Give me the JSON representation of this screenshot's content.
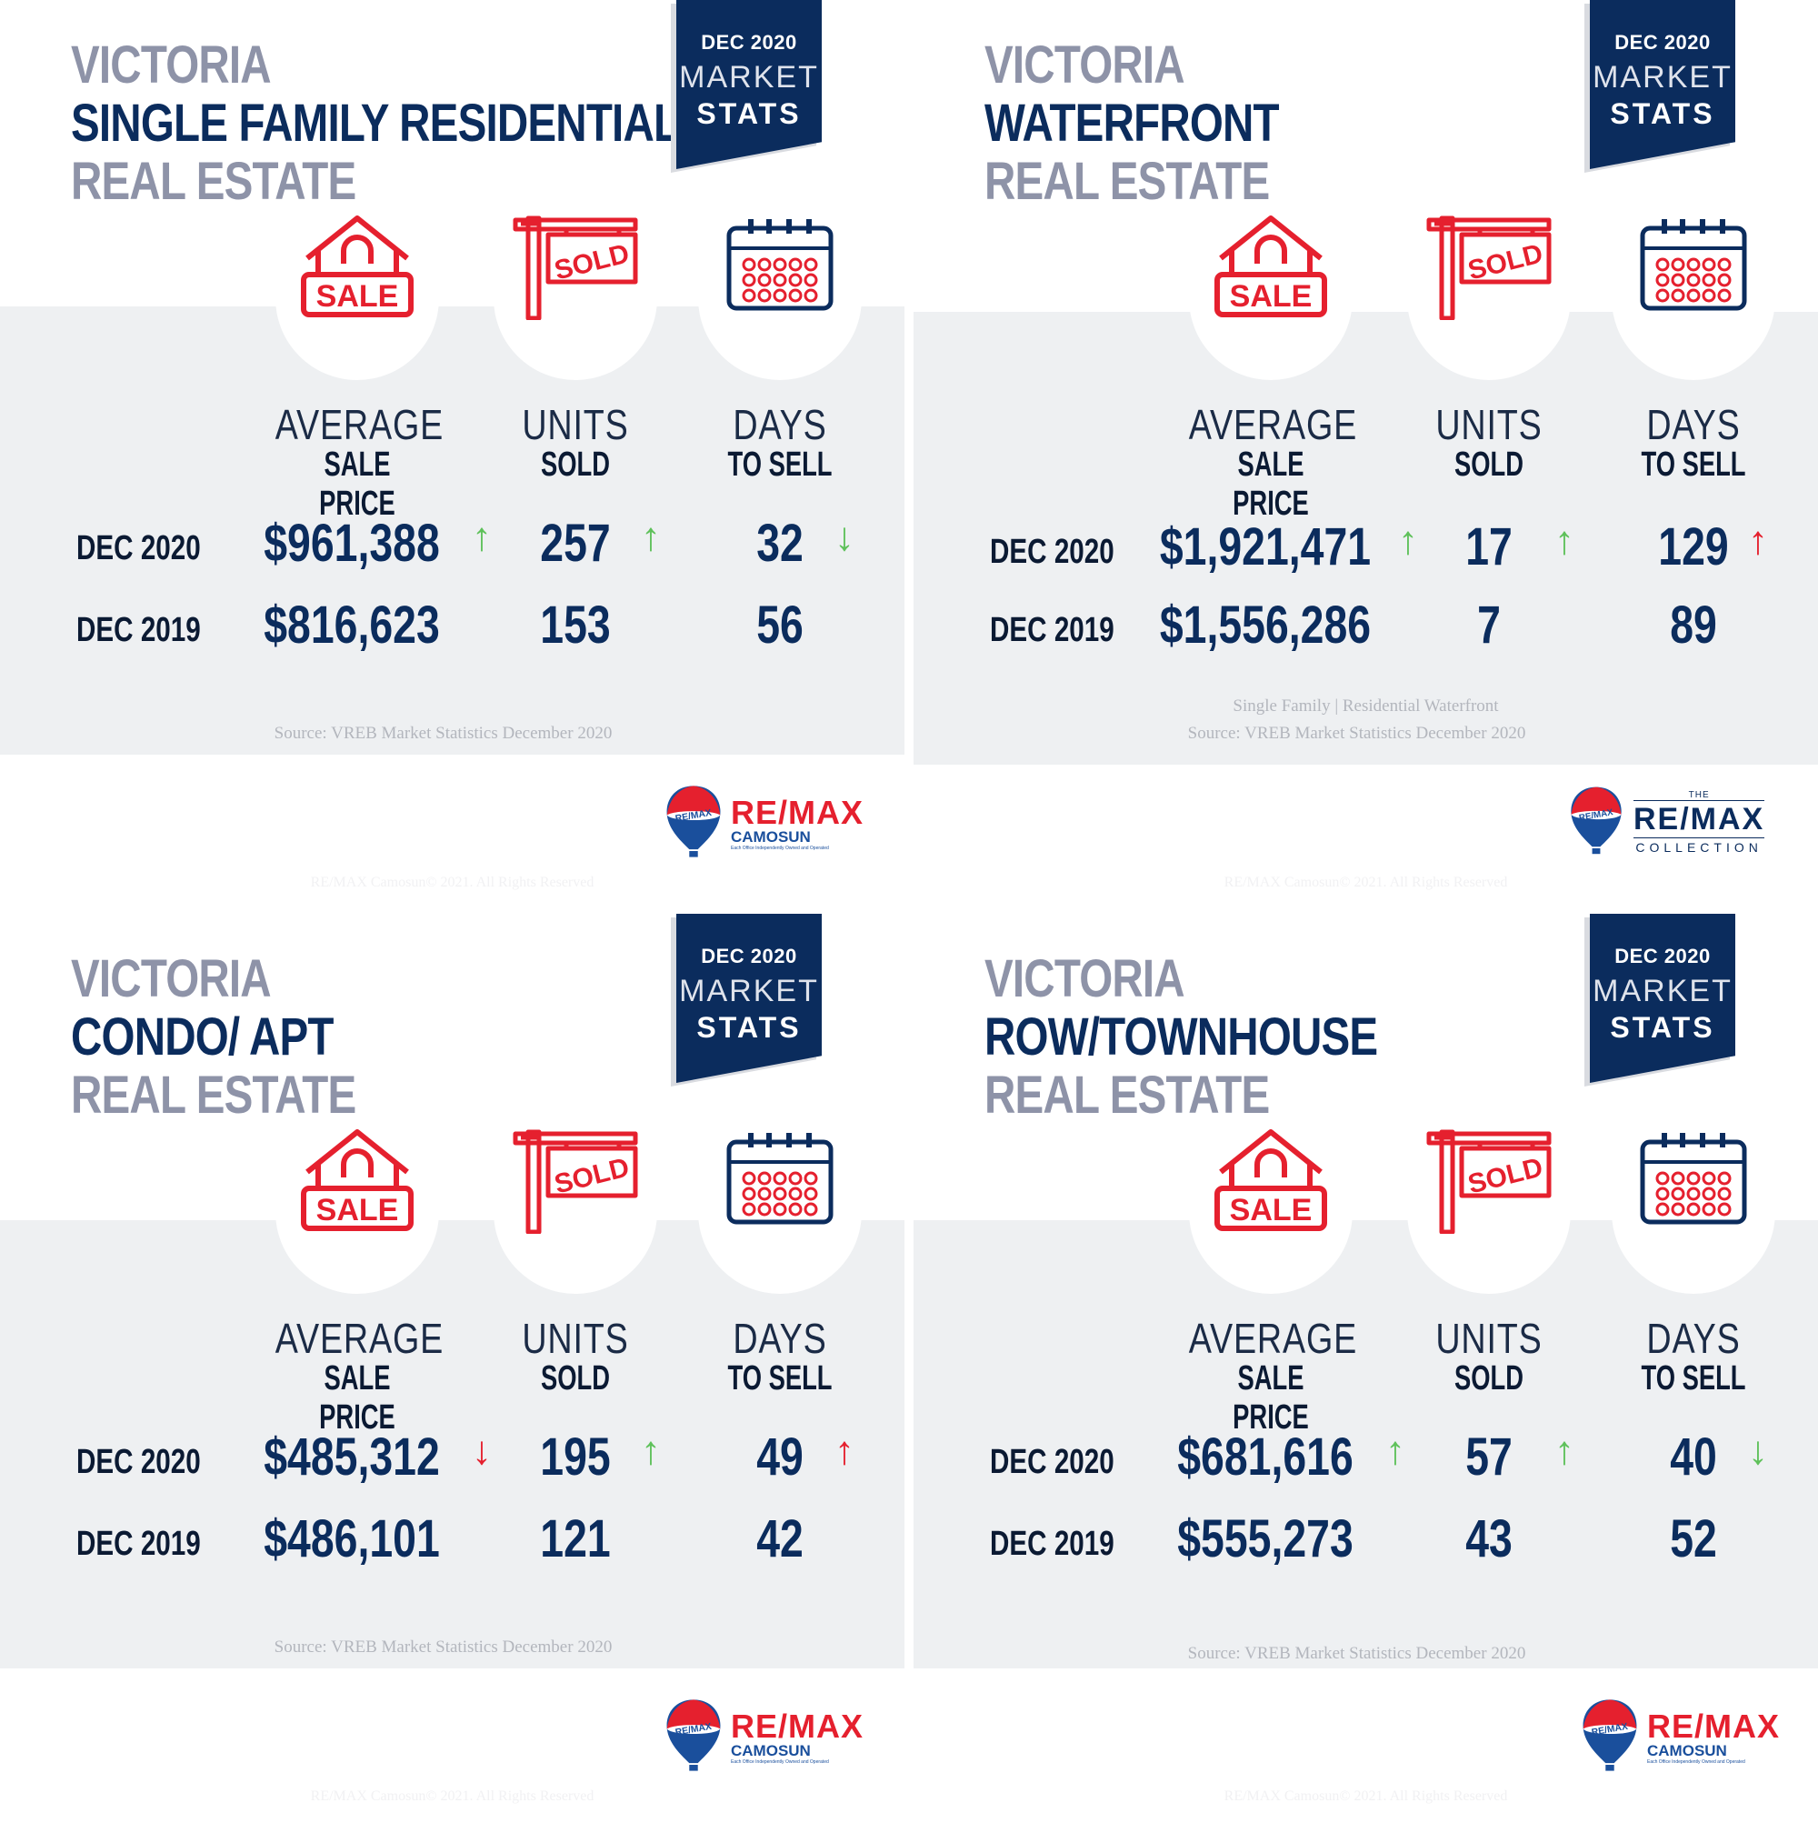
{
  "colors": {
    "navy": "#0b2c5d",
    "grey_title": "#8e93a8",
    "red": "#e5202e",
    "green": "#5ec15a",
    "band": "#eef0f2"
  },
  "panels": [
    {
      "title_line1": "VICTORIA",
      "title_line2": "SINGLE FAMILY RESIDENTIAL",
      "title_line3": "REAL ESTATE",
      "badge": {
        "line1": "DEC 2020",
        "line2": "MARKET",
        "line3": "STATS"
      },
      "icons": [
        "sale-house-icon",
        "sold-sign-icon",
        "calendar-icon"
      ],
      "columns": [
        {
          "line1": "AVERAGE",
          "line2": "SALE PRICE"
        },
        {
          "line1": "UNITS",
          "line2": "SOLD"
        },
        {
          "line1": "DAYS",
          "line2": "TO SELL"
        }
      ],
      "rows": [
        {
          "label": "DEC 2020",
          "values": [
            "$961,388",
            "257",
            "32"
          ],
          "arrows": [
            "↑",
            "↑",
            "↓"
          ],
          "arrow_colors": [
            "green",
            "green",
            "green"
          ]
        },
        {
          "label": "DEC 2019",
          "values": [
            "$816,623",
            "153",
            "56"
          ]
        }
      ],
      "source1": "",
      "source2": "Source: VREB Market Statistics December 2020",
      "logo": {
        "balloon_text": "RE/MAX",
        "brand": "RE/MAX",
        "sub": "CAMOSUN",
        "tagline": "Each Office Independently Owned and Operated"
      },
      "copyright": "RE/MAX Camosun© 2021. All Rights Reserved"
    },
    {
      "title_line1": "VICTORIA",
      "title_line2": "WATERFRONT",
      "title_line3": "REAL ESTATE",
      "badge": {
        "line1": "DEC 2020",
        "line2": "MARKET",
        "line3": "STATS"
      },
      "icons": [
        "sale-house-icon",
        "sold-sign-icon",
        "calendar-icon"
      ],
      "columns": [
        {
          "line1": "AVERAGE",
          "line2": "SALE PRICE"
        },
        {
          "line1": "UNITS",
          "line2": "SOLD"
        },
        {
          "line1": "DAYS",
          "line2": "TO SELL"
        }
      ],
      "rows": [
        {
          "label": "DEC 2020",
          "values": [
            "$1,921,471",
            "17",
            "129"
          ],
          "arrows": [
            "↑",
            "↑",
            "↑"
          ],
          "arrow_colors": [
            "green",
            "green",
            "red"
          ]
        },
        {
          "label": "DEC 2019",
          "values": [
            "$1,556,286",
            "7",
            "89"
          ]
        }
      ],
      "source1": "Single Family | Residential Waterfront",
      "source2": "Source: VREB Market Statistics December 2020",
      "logo": {
        "balloon_text": "RE/MAX",
        "brand": "RE/MAX",
        "sub": "COLLECTION",
        "the": "THE"
      },
      "copyright": "RE/MAX Camosun© 2021. All Rights Reserved"
    },
    {
      "title_line1": "VICTORIA",
      "title_line2": "CONDO/ APT",
      "title_line3": "REAL ESTATE",
      "badge": {
        "line1": "DEC 2020",
        "line2": "MARKET",
        "line3": "STATS"
      },
      "icons": [
        "sale-house-icon",
        "sold-sign-icon",
        "calendar-icon"
      ],
      "columns": [
        {
          "line1": "AVERAGE",
          "line2": "SALE PRICE"
        },
        {
          "line1": "UNITS",
          "line2": "SOLD"
        },
        {
          "line1": "DAYS",
          "line2": "TO SELL"
        }
      ],
      "rows": [
        {
          "label": "DEC 2020",
          "values": [
            "$485,312",
            "195",
            "49"
          ],
          "arrows": [
            "↓",
            "↑",
            "↑"
          ],
          "arrow_colors": [
            "red",
            "green",
            "red"
          ]
        },
        {
          "label": "DEC 2019",
          "values": [
            "$486,101",
            "121",
            "42"
          ]
        }
      ],
      "source1": "",
      "source2": "Source: VREB Market Statistics December 2020",
      "logo": {
        "balloon_text": "RE/MAX",
        "brand": "RE/MAX",
        "sub": "CAMOSUN",
        "tagline": "Each Office Independently Owned and Operated"
      },
      "copyright": "RE/MAX Camosun© 2021. All Rights Reserved"
    },
    {
      "title_line1": "VICTORIA",
      "title_line2": "ROW/TOWNHOUSE",
      "title_line3": "REAL ESTATE",
      "badge": {
        "line1": "DEC 2020",
        "line2": "MARKET",
        "line3": "STATS"
      },
      "icons": [
        "sale-house-icon",
        "sold-sign-icon",
        "calendar-icon"
      ],
      "columns": [
        {
          "line1": "AVERAGE",
          "line2": "SALE PRICE"
        },
        {
          "line1": "UNITS",
          "line2": "SOLD"
        },
        {
          "line1": "DAYS",
          "line2": "TO SELL"
        }
      ],
      "rows": [
        {
          "label": "DEC 2020",
          "values": [
            "$681,616",
            "57",
            "40"
          ],
          "arrows": [
            "↑",
            "↑",
            "↓"
          ],
          "arrow_colors": [
            "green",
            "green",
            "green"
          ]
        },
        {
          "label": "DEC 2019",
          "values": [
            "$555,273",
            "43",
            "52"
          ]
        }
      ],
      "source1": "",
      "source2": "Source: VREB Market Statistics December 2020",
      "logo": {
        "balloon_text": "RE/MAX",
        "brand": "RE/MAX",
        "sub": "CAMOSUN",
        "tagline": "Each Office Independently Owned and Operated"
      },
      "copyright": "RE/MAX Camosun© 2021. All Rights Reserved"
    }
  ]
}
